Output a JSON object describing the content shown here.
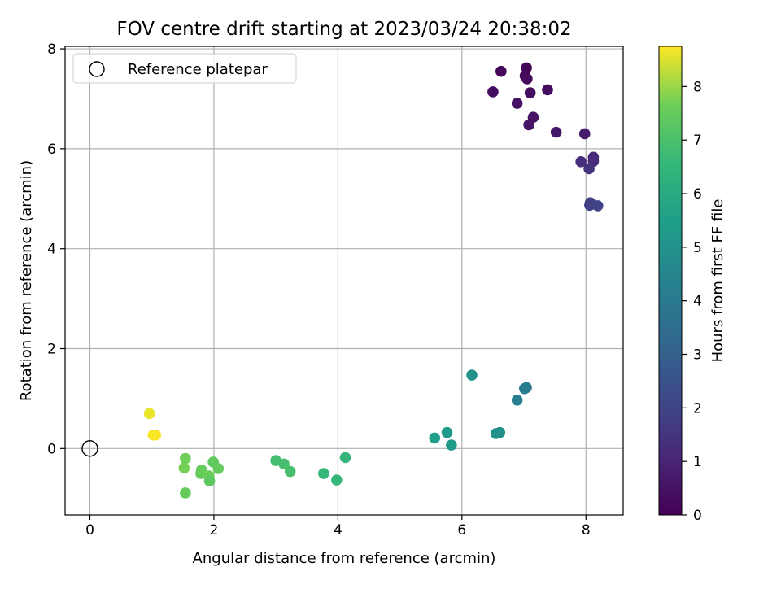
{
  "chart_data": {
    "type": "scatter",
    "title": "FOV centre drift starting at 2023/03/24 20:38:02",
    "xlabel": "Angular distance from reference (arcmin)",
    "ylabel": "Rotation from reference (arcmin)",
    "xlim": [
      -0.4,
      8.6
    ],
    "ylim": [
      -1.33,
      8.05
    ],
    "x_ticks": [
      0,
      2,
      4,
      6,
      8
    ],
    "y_ticks": [
      0,
      2,
      4,
      6,
      8
    ],
    "grid": true,
    "legend": {
      "placement": "upper-left",
      "entries": [
        "Reference platepar"
      ]
    },
    "reference_point": {
      "x": 0,
      "y": 0
    },
    "colorbar": {
      "label": "Hours from first FF file",
      "range": [
        0,
        8.75
      ],
      "ticks": [
        0,
        1,
        2,
        3,
        4,
        5,
        6,
        7,
        8
      ],
      "colormap": "viridis"
    },
    "points": [
      {
        "x": 7.04,
        "y": 7.62,
        "hours": 0.1
      },
      {
        "x": 6.63,
        "y": 7.55,
        "hours": 0.15
      },
      {
        "x": 7.02,
        "y": 7.46,
        "hours": 0.2
      },
      {
        "x": 7.05,
        "y": 7.4,
        "hours": 0.25
      },
      {
        "x": 7.38,
        "y": 7.18,
        "hours": 0.3
      },
      {
        "x": 6.5,
        "y": 7.14,
        "hours": 0.35
      },
      {
        "x": 7.1,
        "y": 7.12,
        "hours": 0.4
      },
      {
        "x": 6.89,
        "y": 6.91,
        "hours": 0.45
      },
      {
        "x": 7.15,
        "y": 6.63,
        "hours": 0.5
      },
      {
        "x": 7.08,
        "y": 6.48,
        "hours": 0.55
      },
      {
        "x": 7.52,
        "y": 6.33,
        "hours": 0.65
      },
      {
        "x": 7.98,
        "y": 6.3,
        "hours": 0.75
      },
      {
        "x": 8.12,
        "y": 5.83,
        "hours": 1.2
      },
      {
        "x": 8.12,
        "y": 5.75,
        "hours": 1.25
      },
      {
        "x": 7.92,
        "y": 5.74,
        "hours": 1.3
      },
      {
        "x": 8.05,
        "y": 5.6,
        "hours": 1.4
      },
      {
        "x": 8.07,
        "y": 4.92,
        "hours": 1.85
      },
      {
        "x": 8.06,
        "y": 4.87,
        "hours": 1.9
      },
      {
        "x": 8.19,
        "y": 4.86,
        "hours": 1.95
      },
      {
        "x": 7.04,
        "y": 1.22,
        "hours": 4.05
      },
      {
        "x": 7.01,
        "y": 1.2,
        "hours": 4.1
      },
      {
        "x": 6.89,
        "y": 0.97,
        "hours": 4.2
      },
      {
        "x": 6.16,
        "y": 1.47,
        "hours": 5.0
      },
      {
        "x": 6.61,
        "y": 0.32,
        "hours": 4.9
      },
      {
        "x": 6.55,
        "y": 0.3,
        "hours": 4.95
      },
      {
        "x": 5.76,
        "y": 0.32,
        "hours": 5.3
      },
      {
        "x": 5.56,
        "y": 0.21,
        "hours": 5.45
      },
      {
        "x": 5.83,
        "y": 0.07,
        "hours": 5.35
      },
      {
        "x": 4.12,
        "y": -0.18,
        "hours": 6.45
      },
      {
        "x": 3.77,
        "y": -0.5,
        "hours": 6.55
      },
      {
        "x": 3.98,
        "y": -0.63,
        "hours": 6.5
      },
      {
        "x": 3.0,
        "y": -0.24,
        "hours": 6.85
      },
      {
        "x": 3.13,
        "y": -0.31,
        "hours": 6.9
      },
      {
        "x": 3.23,
        "y": -0.46,
        "hours": 6.95
      },
      {
        "x": 1.99,
        "y": -0.27,
        "hours": 7.4
      },
      {
        "x": 2.07,
        "y": -0.4,
        "hours": 7.45
      },
      {
        "x": 1.8,
        "y": -0.43,
        "hours": 7.5
      },
      {
        "x": 1.79,
        "y": -0.5,
        "hours": 7.55
      },
      {
        "x": 1.92,
        "y": -0.55,
        "hours": 7.6
      },
      {
        "x": 1.93,
        "y": -0.65,
        "hours": 7.35
      },
      {
        "x": 1.54,
        "y": -0.2,
        "hours": 7.65
      },
      {
        "x": 1.52,
        "y": -0.39,
        "hours": 7.7
      },
      {
        "x": 1.54,
        "y": -0.89,
        "hours": 7.5
      },
      {
        "x": 0.96,
        "y": 0.7,
        "hours": 8.6
      },
      {
        "x": 1.02,
        "y": 0.27,
        "hours": 8.7
      },
      {
        "x": 1.06,
        "y": 0.27,
        "hours": 8.72
      }
    ]
  }
}
